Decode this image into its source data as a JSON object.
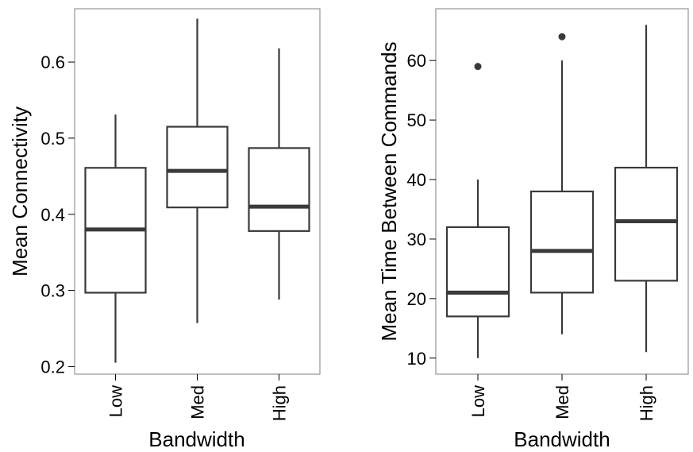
{
  "colors": {
    "box_stroke": "#3a3a3a",
    "median": "#3a3a3a",
    "outlier": "#3a3a3a",
    "frame": "#7f7f7f",
    "background": "#ffffff"
  },
  "chart_data": [
    {
      "type": "box",
      "xlabel": "Bandwidth",
      "ylabel": "Mean Connectivity",
      "categories": [
        "Low",
        "Med",
        "High"
      ],
      "ylim": [
        0.19,
        0.67
      ],
      "yticks": [
        0.2,
        0.3,
        0.4,
        0.5,
        0.6
      ],
      "ytick_labels": [
        "0.2",
        "0.3",
        "0.4",
        "0.5",
        "0.6"
      ],
      "boxes": [
        {
          "category": "Low",
          "whisker_low": 0.205,
          "q1": 0.297,
          "median": 0.38,
          "q3": 0.461,
          "whisker_high": 0.531,
          "outliers": []
        },
        {
          "category": "Med",
          "whisker_low": 0.257,
          "q1": 0.409,
          "median": 0.457,
          "q3": 0.515,
          "whisker_high": 0.657,
          "outliers": []
        },
        {
          "category": "High",
          "whisker_low": 0.288,
          "q1": 0.378,
          "median": 0.41,
          "q3": 0.487,
          "whisker_high": 0.618,
          "outliers": []
        }
      ],
      "grid": false
    },
    {
      "type": "box",
      "xlabel": "Bandwidth",
      "ylabel": "Mean Time Between Commands",
      "categories": [
        "Low",
        "Med",
        "High"
      ],
      "ylim": [
        7.3,
        68.7
      ],
      "yticks": [
        10,
        20,
        30,
        40,
        50,
        60
      ],
      "ytick_labels": [
        "10",
        "20",
        "30",
        "40",
        "50",
        "60"
      ],
      "boxes": [
        {
          "category": "Low",
          "whisker_low": 10,
          "q1": 17,
          "median": 21,
          "q3": 32,
          "whisker_high": 40,
          "outliers": [
            59
          ]
        },
        {
          "category": "Med",
          "whisker_low": 14,
          "q1": 21,
          "median": 28,
          "q3": 38,
          "whisker_high": 60,
          "outliers": [
            64
          ]
        },
        {
          "category": "High",
          "whisker_low": 11,
          "q1": 23,
          "median": 33,
          "q3": 42,
          "whisker_high": 66,
          "outliers": []
        }
      ],
      "grid": false
    }
  ]
}
